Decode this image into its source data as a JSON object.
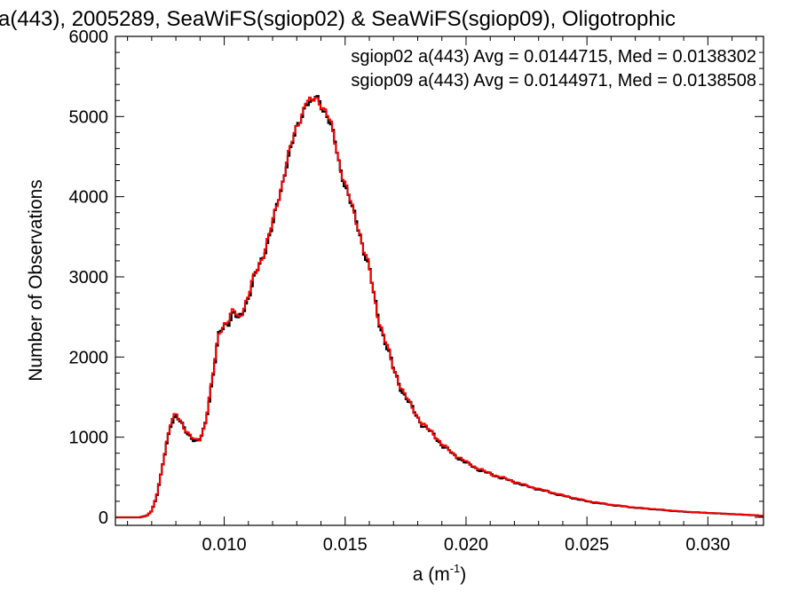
{
  "chart_data": {
    "type": "line",
    "title": "a(443), 2005289, SeaWiFS(sgiop02) & SeaWiFS(sgiop09), Oligotrophic",
    "xlabel": "a (m",
    "xlabel_sup": "-1",
    "xlabel_close": ")",
    "ylabel": "Number of Observations",
    "xlim": [
      0.0055,
      0.0323
    ],
    "ylim": [
      -100,
      6000
    ],
    "xticks": [
      0.01,
      0.015,
      0.02,
      0.025,
      0.03
    ],
    "xtick_labels": [
      "0.010",
      "0.015",
      "0.020",
      "0.025",
      "0.030"
    ],
    "yticks": [
      0,
      1000,
      2000,
      3000,
      4000,
      5000,
      6000
    ],
    "ytick_labels": [
      "0",
      "1000",
      "2000",
      "3000",
      "4000",
      "5000",
      "6000"
    ],
    "grid": false,
    "legend": "top-right",
    "x": [
      0.0055,
      0.006,
      0.0065,
      0.0068,
      0.007,
      0.0072,
      0.0074,
      0.0076,
      0.0078,
      0.008,
      0.0082,
      0.0085,
      0.0088,
      0.009,
      0.0092,
      0.0094,
      0.0096,
      0.0098,
      0.01,
      0.0102,
      0.0104,
      0.0106,
      0.0108,
      0.011,
      0.0112,
      0.0114,
      0.0116,
      0.0118,
      0.012,
      0.0122,
      0.0124,
      0.0126,
      0.0128,
      0.013,
      0.0132,
      0.0134,
      0.0136,
      0.0138,
      0.014,
      0.0142,
      0.0144,
      0.0146,
      0.0148,
      0.015,
      0.0152,
      0.0154,
      0.0156,
      0.0158,
      0.016,
      0.0162,
      0.0164,
      0.0166,
      0.0168,
      0.017,
      0.0172,
      0.0174,
      0.0176,
      0.0178,
      0.018,
      0.0182,
      0.0184,
      0.0186,
      0.0188,
      0.019,
      0.0195,
      0.02,
      0.0205,
      0.021,
      0.0215,
      0.022,
      0.0225,
      0.023,
      0.024,
      0.025,
      0.026,
      0.027,
      0.028,
      0.029,
      0.03,
      0.031,
      0.032,
      0.0323
    ],
    "series": [
      {
        "name": "sgiop02 a(443) Avg = 0.0144715, Med = 0.0138302",
        "color": "#000000",
        "values": [
          0,
          0,
          0,
          20,
          80,
          250,
          550,
          900,
          1180,
          1260,
          1180,
          1050,
          940,
          960,
          1150,
          1500,
          1900,
          2300,
          2400,
          2450,
          2550,
          2450,
          2600,
          2750,
          2950,
          3100,
          3250,
          3450,
          3650,
          3900,
          4150,
          4450,
          4650,
          4850,
          5000,
          5200,
          5150,
          5250,
          5150,
          5050,
          4900,
          4650,
          4350,
          4150,
          3950,
          3750,
          3550,
          3300,
          3100,
          2750,
          2450,
          2250,
          2050,
          1850,
          1700,
          1550,
          1450,
          1350,
          1250,
          1150,
          1100,
          1050,
          980,
          900,
          780,
          680,
          600,
          540,
          490,
          440,
          390,
          350,
          270,
          200,
          155,
          120,
          95,
          70,
          55,
          40,
          25,
          15
        ]
      },
      {
        "name": "sgiop09 a(443) Avg = 0.0144971, Med = 0.0138508",
        "color": "#ff0000",
        "values": [
          0,
          0,
          0,
          20,
          80,
          260,
          560,
          920,
          1200,
          1280,
          1190,
          1060,
          950,
          970,
          1160,
          1520,
          1920,
          2320,
          2420,
          2480,
          2580,
          2470,
          2620,
          2770,
          2970,
          3120,
          3270,
          3470,
          3670,
          3920,
          4170,
          4470,
          4670,
          4870,
          5020,
          5210,
          5170,
          5240,
          5160,
          5060,
          4910,
          4660,
          4360,
          4160,
          3960,
          3760,
          3560,
          3310,
          3110,
          2760,
          2460,
          2260,
          2060,
          1860,
          1710,
          1560,
          1460,
          1360,
          1260,
          1160,
          1110,
          1060,
          990,
          910,
          790,
          690,
          610,
          545,
          495,
          445,
          395,
          355,
          275,
          205,
          158,
          122,
          97,
          72,
          56,
          41,
          26,
          16
        ]
      }
    ]
  }
}
